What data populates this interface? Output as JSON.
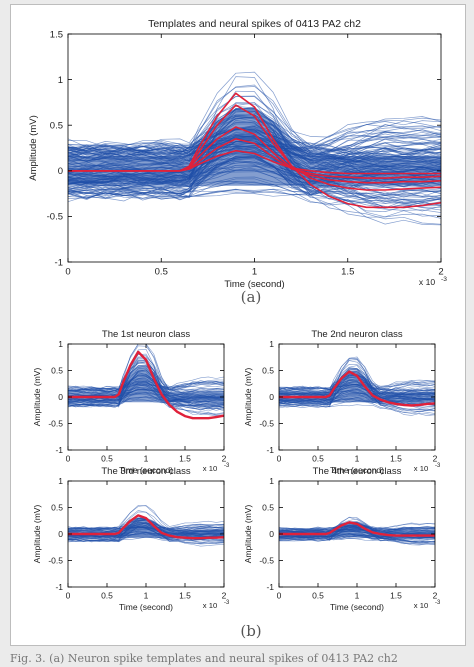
{
  "captions": {
    "a": "(a)",
    "b": "(b)"
  },
  "bottom_caption": "Fig. 3.  (a) Neuron spike templates and neural spikes of 0413 PA2 ch2",
  "colors": {
    "spikes": "#1f4fa8",
    "templates": "#e0213a",
    "axes": "#000000"
  },
  "chart_data": [
    {
      "type": "line",
      "title": "Templates and neural spikes of 0413 PA2 ch2",
      "xlabel": "Time (second)",
      "ylabel": "Amplitude (mV)",
      "x_multiplier": "x 10",
      "x_exponent": "-3",
      "xlim": [
        0,
        2
      ],
      "ylim": [
        -1,
        1.5
      ],
      "xticks": [
        0,
        0.5,
        1,
        1.5,
        2
      ],
      "xtick_labels": [
        "0",
        "0.5",
        "1",
        "1.5",
        "2"
      ],
      "yticks": [
        -1,
        -0.5,
        0,
        0.5,
        1,
        1.5
      ],
      "ytick_labels": [
        "-1",
        "-0.5",
        "0",
        "0.5",
        "1",
        "1.5"
      ],
      "grid": false,
      "x": [
        0,
        0.1,
        0.2,
        0.3,
        0.4,
        0.5,
        0.6,
        0.65,
        0.7,
        0.8,
        0.9,
        1.0,
        1.1,
        1.2,
        1.3,
        1.4,
        1.5,
        1.6,
        1.7,
        1.8,
        1.9,
        2.0
      ],
      "background": {
        "center": 0,
        "spread": 0.3,
        "max_peak": 1.2,
        "count": 140
      },
      "series": [
        {
          "values": [
            0,
            0,
            0,
            0,
            0,
            0,
            0,
            0.05,
            0.25,
            0.6,
            0.85,
            0.7,
            0.35,
            0.05,
            -0.15,
            -0.28,
            -0.36,
            -0.4,
            -0.4,
            -0.4,
            -0.38,
            -0.35
          ]
        },
        {
          "values": [
            0,
            0,
            0,
            0,
            0,
            0,
            0,
            0.04,
            0.2,
            0.5,
            0.72,
            0.6,
            0.3,
            0.05,
            -0.08,
            -0.15,
            -0.19,
            -0.21,
            -0.21,
            -0.2,
            -0.19,
            -0.18
          ]
        },
        {
          "values": [
            0,
            0,
            0,
            0,
            0,
            0,
            0,
            0.03,
            0.15,
            0.35,
            0.48,
            0.4,
            0.2,
            0.03,
            -0.05,
            -0.1,
            -0.12,
            -0.13,
            -0.13,
            -0.12,
            -0.12,
            -0.11
          ]
        },
        {
          "values": [
            0,
            0,
            0,
            0,
            0,
            0,
            0,
            0.02,
            0.1,
            0.25,
            0.35,
            0.3,
            0.15,
            0.02,
            -0.03,
            -0.06,
            -0.07,
            -0.08,
            -0.08,
            -0.07,
            -0.07,
            -0.06
          ]
        },
        {
          "values": [
            0,
            0,
            0,
            0,
            0,
            0,
            0,
            0.02,
            0.07,
            0.16,
            0.22,
            0.19,
            0.1,
            0.03,
            0,
            -0.02,
            -0.03,
            -0.03,
            -0.03,
            -0.03,
            -0.03,
            -0.03
          ]
        }
      ]
    },
    {
      "type": "line",
      "title": "The 1st neuron class",
      "xlabel": "Time (second)",
      "ylabel": "Amplitude (mV)",
      "x_multiplier": "x 10",
      "x_exponent": "-3",
      "xlim": [
        0,
        2
      ],
      "ylim": [
        -1,
        1
      ],
      "xticks": [
        0,
        0.5,
        1,
        1.5,
        2
      ],
      "xtick_labels": [
        "0",
        "0.5",
        "1",
        "1.5",
        "2"
      ],
      "yticks": [
        -1,
        -0.5,
        0,
        0.5,
        1
      ],
      "ytick_labels": [
        "-1",
        "-0.5",
        "0",
        "0.5",
        "1"
      ],
      "grid": false,
      "x": [
        0,
        0.1,
        0.2,
        0.3,
        0.4,
        0.5,
        0.6,
        0.65,
        0.7,
        0.8,
        0.9,
        1.0,
        1.1,
        1.2,
        1.3,
        1.4,
        1.5,
        1.6,
        1.7,
        1.8,
        1.9,
        2.0
      ],
      "background": {
        "center": 0,
        "spread": 0.18,
        "max_peak": 1.15,
        "count": 70
      },
      "series": [
        {
          "values": [
            0,
            0,
            0,
            0,
            0,
            0,
            0,
            0.05,
            0.25,
            0.6,
            0.85,
            0.7,
            0.35,
            0.05,
            -0.15,
            -0.28,
            -0.36,
            -0.4,
            -0.4,
            -0.4,
            -0.38,
            -0.35
          ]
        }
      ]
    },
    {
      "type": "line",
      "title": "The 2nd neuron class",
      "xlabel": "Time (second)",
      "ylabel": "Amplitude (mV)",
      "x_multiplier": "x 10",
      "x_exponent": "-3",
      "xlim": [
        0,
        2
      ],
      "ylim": [
        -1,
        1
      ],
      "xticks": [
        0,
        0.5,
        1,
        1.5,
        2
      ],
      "xtick_labels": [
        "0",
        "0.5",
        "1",
        "1.5",
        "2"
      ],
      "yticks": [
        -1,
        -0.5,
        0,
        0.5,
        1
      ],
      "ytick_labels": [
        "-1",
        "-0.5",
        "0",
        "0.5",
        "1"
      ],
      "grid": false,
      "x": [
        0,
        0.1,
        0.2,
        0.3,
        0.4,
        0.5,
        0.6,
        0.65,
        0.7,
        0.8,
        0.9,
        1.0,
        1.1,
        1.2,
        1.3,
        1.4,
        1.5,
        1.6,
        1.7,
        1.8,
        1.9,
        2.0
      ],
      "background": {
        "center": 0,
        "spread": 0.18,
        "max_peak": 0.9,
        "count": 70
      },
      "series": [
        {
          "values": [
            0,
            0,
            0,
            0,
            0,
            0,
            0,
            0.03,
            0.15,
            0.35,
            0.48,
            0.4,
            0.2,
            0.03,
            -0.05,
            -0.1,
            -0.13,
            -0.15,
            -0.16,
            -0.15,
            -0.13,
            -0.12
          ]
        }
      ]
    },
    {
      "type": "line",
      "title": "The 3rd neuron class",
      "xlabel": "Time (second)",
      "ylabel": "Amplitude (mV)",
      "x_multiplier": "x 10",
      "x_exponent": "-3",
      "xlim": [
        0,
        2
      ],
      "ylim": [
        -1,
        1
      ],
      "xticks": [
        0,
        0.5,
        1,
        1.5,
        2
      ],
      "xtick_labels": [
        "0",
        "0.5",
        "1",
        "1.5",
        "2"
      ],
      "yticks": [
        -1,
        -0.5,
        0,
        0.5,
        1
      ],
      "ytick_labels": [
        "-1",
        "-0.5",
        "0",
        "0.5",
        "1"
      ],
      "grid": false,
      "x": [
        0,
        0.1,
        0.2,
        0.3,
        0.4,
        0.5,
        0.6,
        0.65,
        0.7,
        0.8,
        0.9,
        1.0,
        1.1,
        1.2,
        1.3,
        1.4,
        1.5,
        1.6,
        1.7,
        1.8,
        1.9,
        2.0
      ],
      "background": {
        "center": 0,
        "spread": 0.13,
        "max_peak": 0.55,
        "count": 60
      },
      "series": [
        {
          "values": [
            0,
            0,
            0,
            0,
            0,
            0,
            0,
            0.02,
            0.1,
            0.25,
            0.35,
            0.3,
            0.15,
            0.02,
            -0.03,
            -0.06,
            -0.07,
            -0.08,
            -0.08,
            -0.07,
            -0.07,
            -0.06
          ]
        }
      ]
    },
    {
      "type": "line",
      "title": "The 4th neuron class",
      "xlabel": "Time (second)",
      "ylabel": "Amplitude (mV)",
      "x_multiplier": "x 10",
      "x_exponent": "-3",
      "xlim": [
        0,
        2
      ],
      "ylim": [
        -1,
        1
      ],
      "xticks": [
        0,
        0.5,
        1,
        1.5,
        2
      ],
      "xtick_labels": [
        "0",
        "0.5",
        "1",
        "1.5",
        "2"
      ],
      "yticks": [
        -1,
        -0.5,
        0,
        0.5,
        1
      ],
      "ytick_labels": [
        "-1",
        "-0.5",
        "0",
        "0.5",
        "1"
      ],
      "grid": false,
      "x": [
        0,
        0.1,
        0.2,
        0.3,
        0.4,
        0.5,
        0.6,
        0.65,
        0.7,
        0.8,
        0.9,
        1.0,
        1.1,
        1.2,
        1.3,
        1.4,
        1.5,
        1.6,
        1.7,
        1.8,
        1.9,
        2.0
      ],
      "background": {
        "center": 0,
        "spread": 0.12,
        "max_peak": 0.4,
        "count": 60
      },
      "series": [
        {
          "values": [
            0,
            0,
            0,
            0,
            0,
            0,
            0,
            0.02,
            0.07,
            0.16,
            0.22,
            0.19,
            0.1,
            0.03,
            0,
            -0.02,
            -0.03,
            -0.03,
            -0.03,
            -0.03,
            -0.03,
            -0.03
          ]
        }
      ]
    }
  ]
}
